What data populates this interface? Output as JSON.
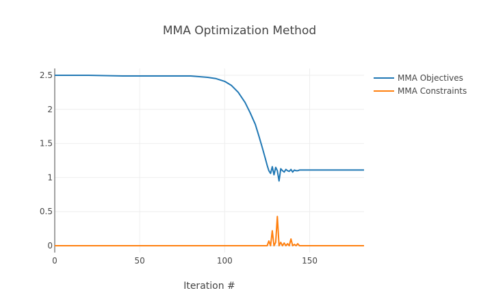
{
  "chart_data": {
    "type": "line",
    "title": "MMA Optimization Method",
    "xlabel": "Iteration #",
    "ylabel": "",
    "xlim": [
      0,
      182
    ],
    "ylim": [
      -0.1,
      2.6
    ],
    "x_ticks": [
      0,
      50,
      100,
      150
    ],
    "x_tick_labels": [
      "0",
      "50",
      "100",
      "150"
    ],
    "y_ticks": [
      0,
      0.5,
      1,
      1.5,
      2,
      2.5
    ],
    "y_tick_labels": [
      "0",
      "0.5",
      "1",
      "1.5",
      "2",
      "2.5"
    ],
    "grid": true,
    "legend_position": "top-right",
    "series": [
      {
        "name": "MMA Objectives",
        "color": "#1f77b4",
        "x": [
          0,
          20,
          40,
          60,
          80,
          85,
          90,
          95,
          100,
          104,
          108,
          112,
          115,
          118,
          120,
          122,
          124,
          125,
          126,
          127,
          128,
          129,
          130,
          131,
          132,
          133,
          134,
          135,
          136,
          137,
          138,
          139,
          140,
          141,
          142,
          143,
          144,
          145,
          150,
          160,
          170,
          182
        ],
        "y": [
          2.5,
          2.5,
          2.49,
          2.49,
          2.49,
          2.48,
          2.47,
          2.45,
          2.41,
          2.35,
          2.25,
          2.1,
          1.95,
          1.78,
          1.62,
          1.45,
          1.27,
          1.18,
          1.1,
          1.06,
          1.16,
          1.04,
          1.15,
          1.1,
          0.95,
          1.13,
          1.1,
          1.08,
          1.12,
          1.1,
          1.09,
          1.12,
          1.08,
          1.11,
          1.1,
          1.1,
          1.11,
          1.11,
          1.11,
          1.11,
          1.11,
          1.11
        ]
      },
      {
        "name": "MMA Constraints",
        "color": "#ff7f0e",
        "x": [
          0,
          50,
          100,
          125,
          126,
          127,
          128,
          129,
          130,
          131,
          132,
          133,
          134,
          135,
          136,
          137,
          138,
          139,
          140,
          141,
          142,
          143,
          144,
          145,
          150,
          182
        ],
        "y": [
          0,
          0,
          0,
          0,
          0.07,
          0,
          0.22,
          0,
          0.05,
          0.43,
          0,
          0.05,
          0,
          0.04,
          0,
          0.03,
          0,
          0.1,
          0,
          0.02,
          0,
          0.03,
          0,
          0,
          0,
          0
        ]
      }
    ]
  }
}
